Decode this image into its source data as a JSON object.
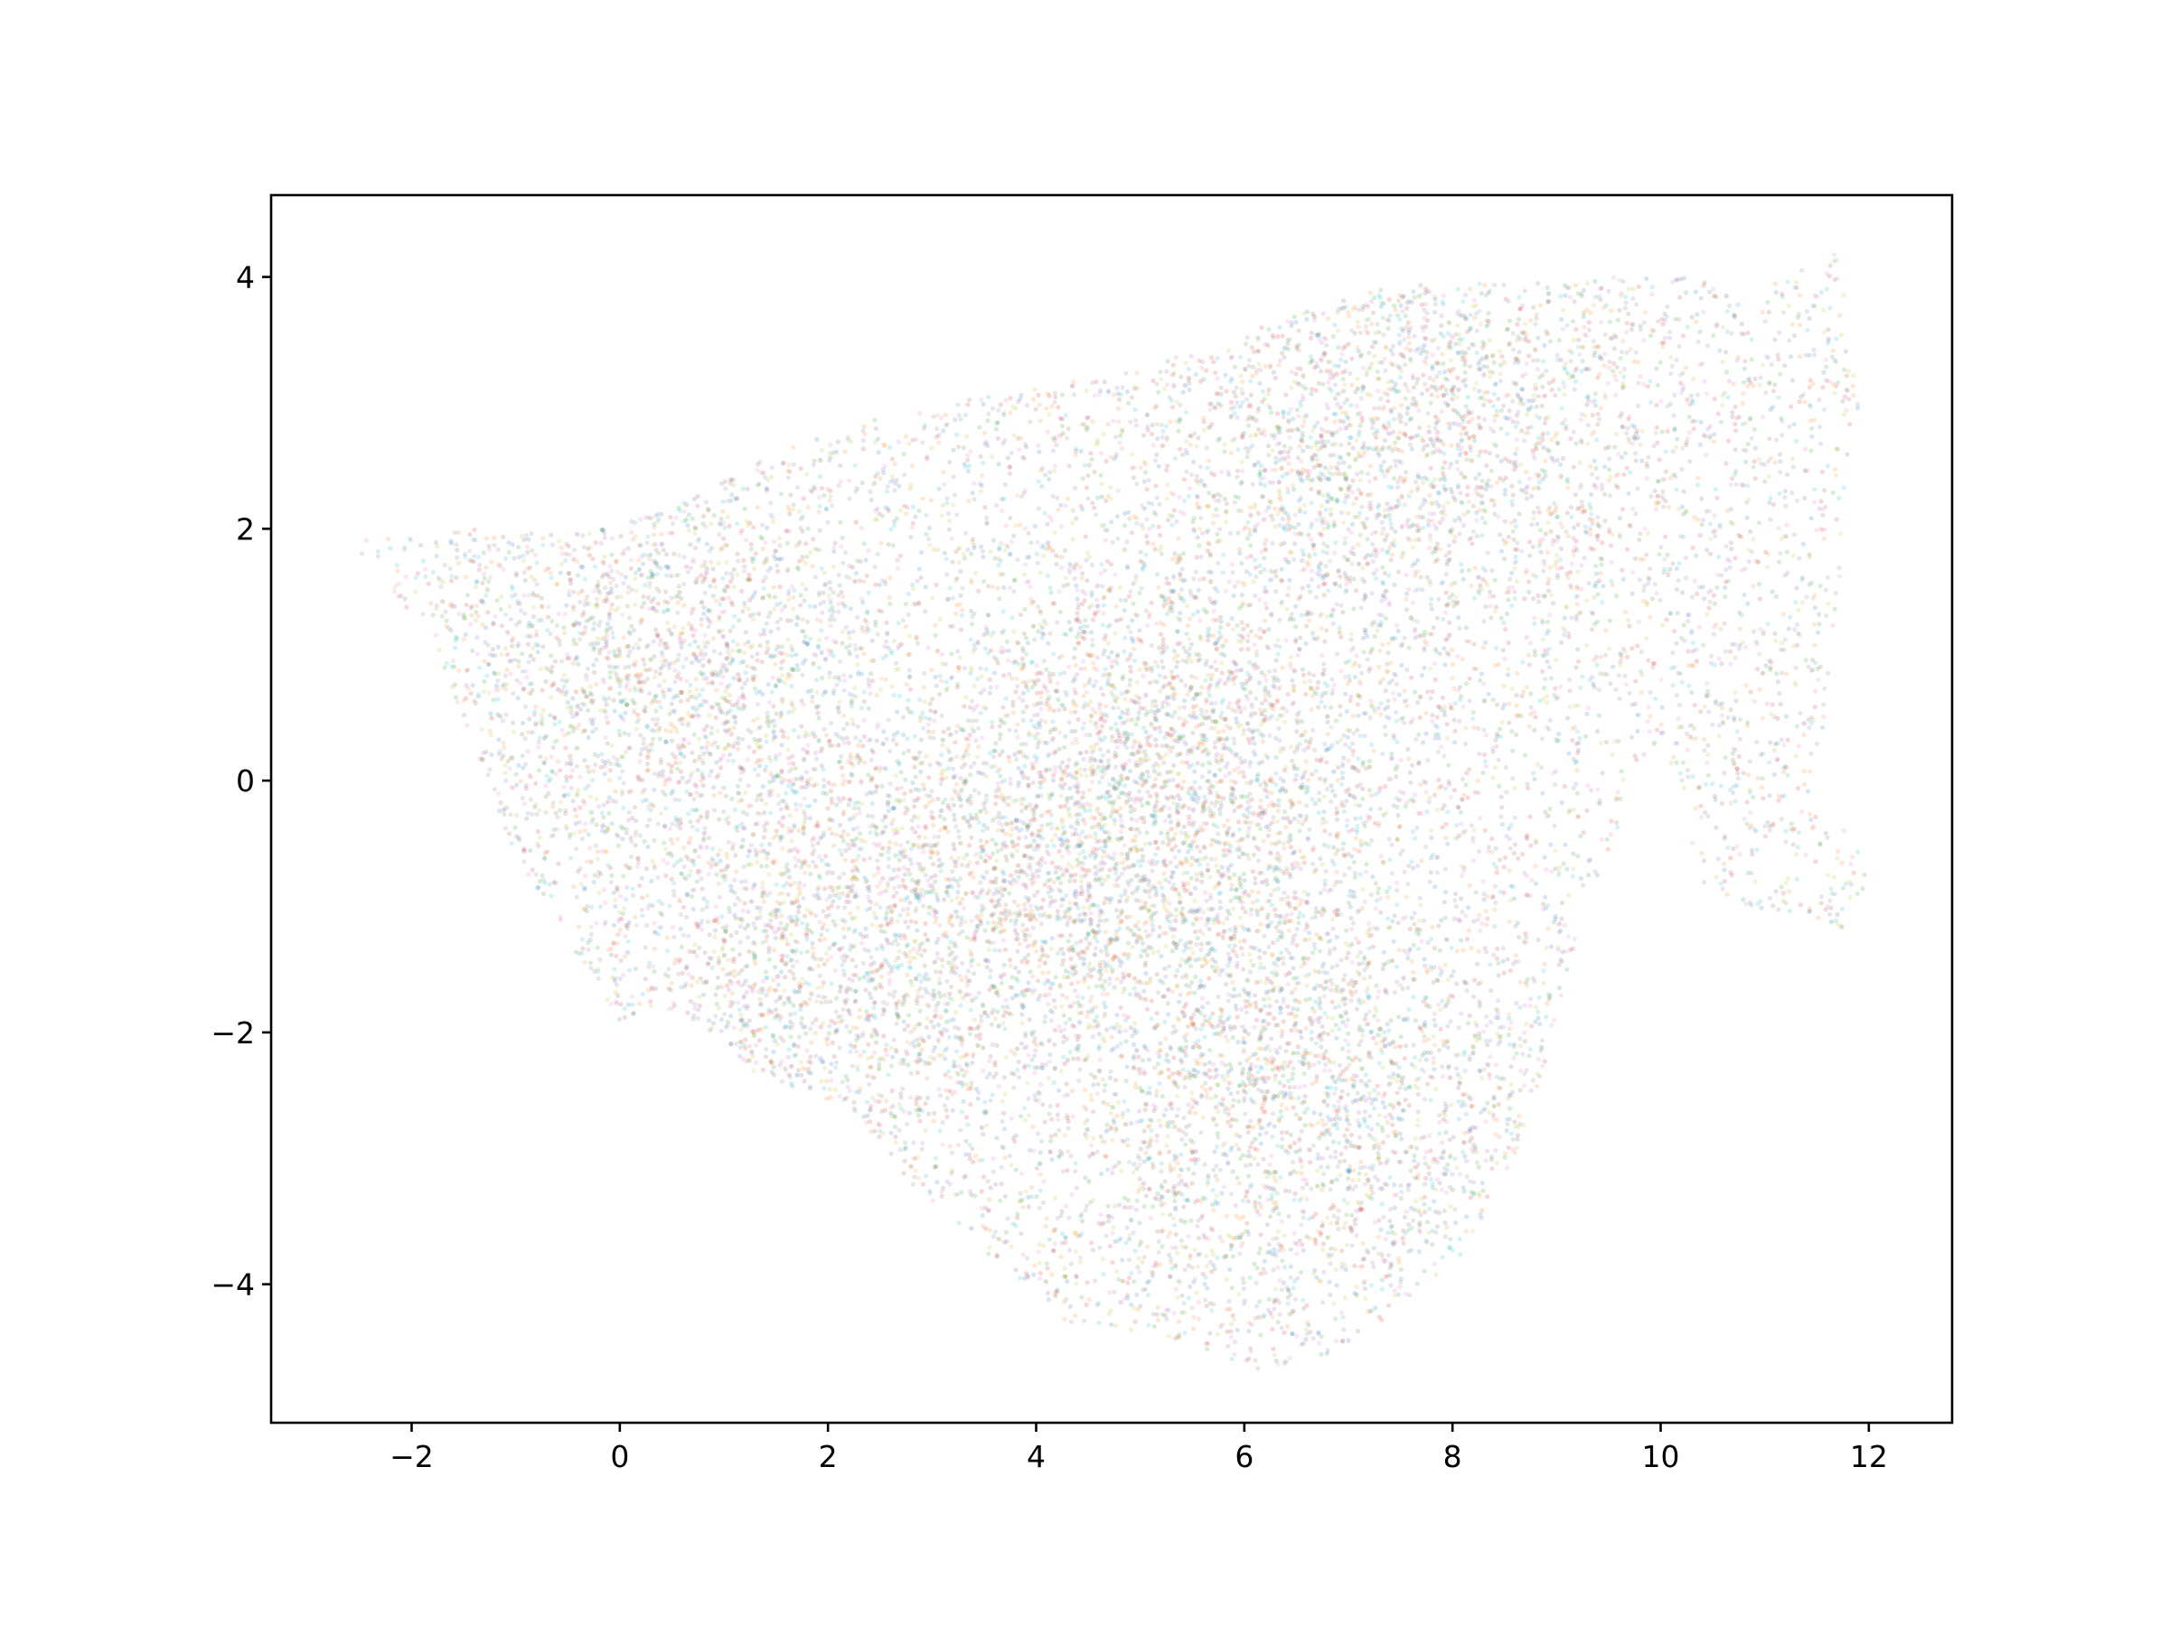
{
  "chart_data": {
    "type": "scatter",
    "title": "",
    "xlabel": "",
    "ylabel": "",
    "xlim": [
      -3.35,
      12.8
    ],
    "ylim": [
      -5.1,
      4.65
    ],
    "xticks": [
      -2,
      0,
      2,
      4,
      6,
      8,
      10,
      12
    ],
    "yticks": [
      -4,
      -2,
      0,
      2,
      4
    ],
    "xtick_labels": [
      "−2",
      "0",
      "2",
      "4",
      "6",
      "8",
      "10",
      "12"
    ],
    "ytick_labels": [
      "−4",
      "−2",
      "0",
      "2",
      "4"
    ],
    "grid": false,
    "legend": "none",
    "marker_alpha": 0.18,
    "point_count_approx": 60000,
    "colors": [
      "#1f77b4",
      "#ff7f0e",
      "#2ca02c",
      "#d62728",
      "#9467bd",
      "#8c564b",
      "#e377c2",
      "#7f7f7f",
      "#bcbd22",
      "#17becf"
    ],
    "cloud_outline": [
      [
        -2.6,
        1.9
      ],
      [
        -2.0,
        1.95
      ],
      [
        -1.5,
        2.0
      ],
      [
        -0.5,
        1.95
      ],
      [
        0.5,
        2.2
      ],
      [
        1.5,
        2.6
      ],
      [
        2.5,
        2.9
      ],
      [
        3.5,
        3.05
      ],
      [
        4.5,
        3.2
      ],
      [
        5.5,
        3.4
      ],
      [
        6.5,
        3.7
      ],
      [
        7.5,
        3.95
      ],
      [
        8.5,
        3.95
      ],
      [
        9.5,
        4.0
      ],
      [
        10.2,
        4.0
      ],
      [
        10.8,
        3.9
      ],
      [
        11.2,
        4.0
      ],
      [
        11.7,
        4.2
      ],
      [
        11.9,
        3.0
      ],
      [
        11.75,
        1.8
      ],
      [
        11.6,
        0.6
      ],
      [
        11.45,
        -0.2
      ],
      [
        11.75,
        -0.35
      ],
      [
        12.05,
        -0.7
      ],
      [
        11.75,
        -1.2
      ],
      [
        11.2,
        -1.05
      ],
      [
        10.65,
        -1.05
      ],
      [
        10.3,
        -0.7
      ],
      [
        10.3,
        -0.2
      ],
      [
        9.9,
        0.3
      ],
      [
        9.2,
        -1.2
      ],
      [
        8.8,
        -2.6
      ],
      [
        8.2,
        -3.7
      ],
      [
        7.3,
        -4.3
      ],
      [
        6.8,
        -4.55
      ],
      [
        6.1,
        -4.7
      ],
      [
        5.6,
        -4.5
      ],
      [
        5.0,
        -4.4
      ],
      [
        4.3,
        -4.3
      ],
      [
        3.8,
        -3.95
      ],
      [
        3.3,
        -3.6
      ],
      [
        2.8,
        -3.2
      ],
      [
        2.2,
        -2.6
      ],
      [
        1.3,
        -2.35
      ],
      [
        0.9,
        -2.0
      ],
      [
        0.3,
        -1.8
      ],
      [
        0.0,
        -1.9
      ],
      [
        -0.5,
        -1.3
      ],
      [
        -1.0,
        -0.6
      ],
      [
        -1.4,
        0.3
      ],
      [
        -1.8,
        1.1
      ],
      [
        -2.35,
        1.7
      ]
    ],
    "dense_regions": [
      {
        "x": 4.5,
        "y": -0.7,
        "weight": 1.0
      },
      {
        "x": 5.5,
        "y": 0.3,
        "weight": 1.0
      },
      {
        "x": 2.0,
        "y": -1.5,
        "weight": 0.8
      },
      {
        "x": 7.5,
        "y": 2.8,
        "weight": 0.8
      },
      {
        "x": 6.5,
        "y": -2.5,
        "weight": 0.7
      },
      {
        "x": 0.5,
        "y": 0.8,
        "weight": 0.7
      }
    ]
  }
}
